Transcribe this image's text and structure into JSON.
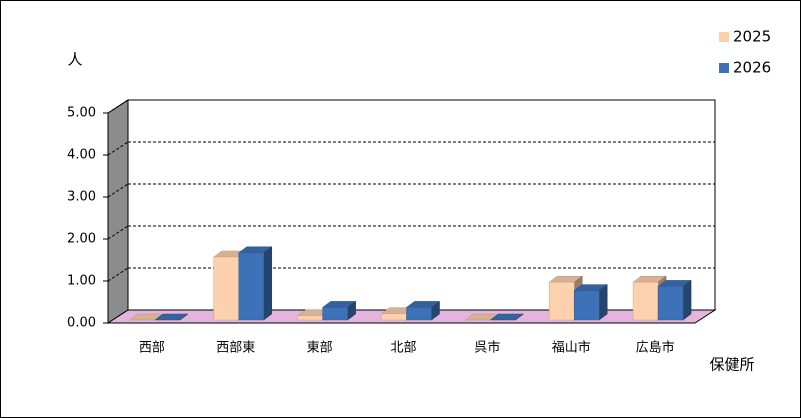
{
  "chart_data": {
    "type": "bar3d",
    "y_label": "人",
    "x_label": "保健所",
    "categories": [
      "西部",
      "西部東",
      "東部",
      "北部",
      "呉市",
      "福山市",
      "広島市"
    ],
    "series": [
      {
        "name": "2025",
        "color": "#fdd0ae",
        "values": [
          0,
          1.5,
          0.1,
          0.15,
          0,
          0.9,
          0.9
        ]
      },
      {
        "name": "2026",
        "color": "#3e72b8",
        "values": [
          0,
          1.6,
          0.3,
          0.3,
          0,
          0.7,
          0.8
        ]
      }
    ],
    "ylim": [
      0,
      5
    ],
    "yticks": [
      {
        "value": 0,
        "label": "0.00"
      },
      {
        "value": 1,
        "label": "1.00"
      },
      {
        "value": 2,
        "label": "2.00"
      },
      {
        "value": 3,
        "label": "3.00"
      },
      {
        "value": 4,
        "label": "4.00"
      },
      {
        "value": 5,
        "label": "5.00"
      }
    ],
    "grid": true
  }
}
